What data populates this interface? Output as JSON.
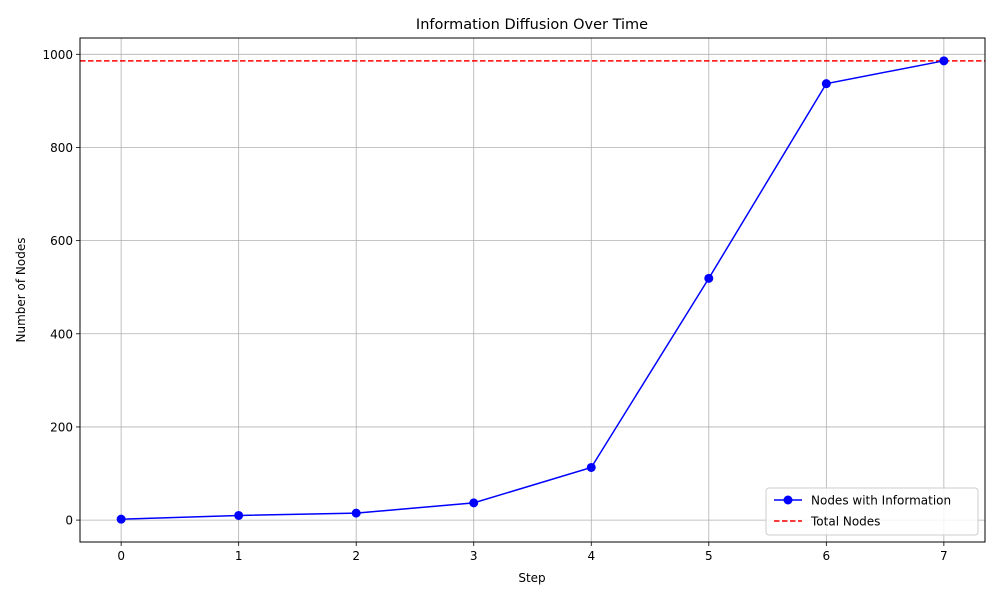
{
  "chart_data": {
    "type": "line",
    "title": "Information Diffusion Over Time",
    "xlabel": "Step",
    "ylabel": "Number of Nodes",
    "xlim": [
      -0.35,
      7.35
    ],
    "ylim": [
      -47,
      1035
    ],
    "xticks": [
      0,
      1,
      2,
      3,
      4,
      5,
      6,
      7
    ],
    "xtick_labels": [
      "0",
      "1",
      "2",
      "3",
      "4",
      "5",
      "6",
      "7"
    ],
    "yticks": [
      0,
      200,
      400,
      600,
      800,
      1000
    ],
    "ytick_labels": [
      "0",
      "200",
      "400",
      "600",
      "800",
      "1000"
    ],
    "grid": true,
    "legend_position": "lower-right",
    "series": [
      {
        "name": "Nodes with Information",
        "color": "#0000ff",
        "marker": "circle",
        "x": [
          0,
          1,
          2,
          3,
          4,
          5,
          6,
          7
        ],
        "y": [
          2,
          10,
          15,
          37,
          113,
          519,
          937,
          986
        ]
      }
    ],
    "reference_lines": [
      {
        "name": "Total Nodes",
        "color": "#ff0000",
        "style": "dashed",
        "y": 986
      }
    ]
  }
}
